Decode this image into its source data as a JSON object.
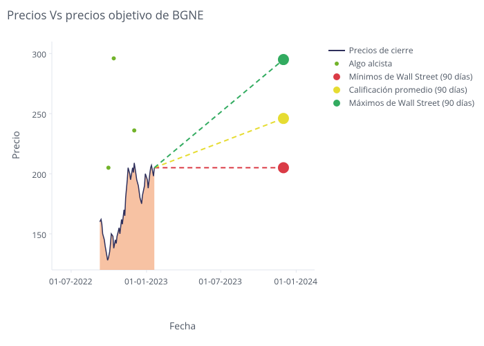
{
  "title": "Precios Vs precios objetivo de BGNE",
  "xlabel": "Fecha",
  "ylabel": "Precio",
  "title_fontsize": 17,
  "label_fontsize": 14,
  "tick_fontsize": 12,
  "background_color": "#ffffff",
  "title_color": "#4d5663",
  "text_color": "#4d5663",
  "axis_line_color": "#e1e5ed",
  "xlim": [
    "2022-05-15",
    "2024-02-15"
  ],
  "ylim": [
    120,
    310
  ],
  "xticks": [
    "01-07-2022",
    "01-01-2023",
    "01-07-2023",
    "01-01-2024"
  ],
  "yticks": [
    150,
    200,
    250,
    300
  ],
  "legend": {
    "position": "right-top",
    "items": [
      {
        "label": "Precios de cierre",
        "type": "line",
        "color": "#2e2f5b"
      },
      {
        "label": "Algo alcista",
        "type": "marker",
        "color": "#72b32a",
        "marker_size": 6
      },
      {
        "label": "Mínimos de Wall Street (90 días)",
        "type": "marker",
        "color": "#da3b46",
        "marker_size": 12
      },
      {
        "label": "Calificación promedio (90 días)",
        "type": "marker",
        "color": "#e6dc32",
        "marker_size": 12
      },
      {
        "label": "Máximos de Wall Street (90 días)",
        "type": "marker",
        "color": "#32ab60",
        "marker_size": 12
      }
    ]
  },
  "series": {
    "close_prices": {
      "type": "line",
      "color": "#2e2f5b",
      "line_width": 1.5,
      "fill": "tozeroy",
      "fill_color": "#f4ae84",
      "fill_opacity": 0.75,
      "x": [
        "2022-09-09",
        "2022-09-12",
        "2022-09-14",
        "2022-09-16",
        "2022-09-20",
        "2022-09-22",
        "2022-09-26",
        "2022-09-28",
        "2022-09-30",
        "2022-10-03",
        "2022-10-05",
        "2022-10-07",
        "2022-10-11",
        "2022-10-13",
        "2022-10-17",
        "2022-10-19",
        "2022-10-21",
        "2022-10-24",
        "2022-10-26",
        "2022-10-28",
        "2022-11-01",
        "2022-11-03",
        "2022-11-07",
        "2022-11-09",
        "2022-11-11",
        "2022-11-15",
        "2022-11-17",
        "2022-11-21",
        "2022-11-23",
        "2022-11-28",
        "2022-11-30",
        "2022-12-02",
        "2022-12-06",
        "2022-12-08",
        "2022-12-12",
        "2022-12-14",
        "2022-12-16",
        "2022-12-20",
        "2022-12-22",
        "2022-12-27",
        "2022-12-29",
        "2023-01-03",
        "2023-01-05",
        "2023-01-09",
        "2023-01-11",
        "2023-01-13",
        "2023-01-18",
        "2023-01-20"
      ],
      "y": [
        160,
        162,
        158,
        150,
        145,
        140,
        132,
        128,
        130,
        135,
        142,
        150,
        148,
        138,
        145,
        142,
        148,
        152,
        155,
        150,
        162,
        158,
        170,
        165,
        180,
        195,
        205,
        200,
        195,
        205,
        201,
        209,
        200,
        195,
        190,
        185,
        180,
        175,
        182,
        190,
        200,
        195,
        188,
        200,
        205,
        207,
        198,
        205
      ]
    },
    "bullish": {
      "type": "scatter",
      "color": "#72b32a",
      "marker_size": 6,
      "x": [
        "2022-09-30",
        "2022-10-13",
        "2022-12-02"
      ],
      "y": [
        205,
        296,
        236
      ]
    },
    "wallst_low": {
      "type": "target_line",
      "color": "#da3b46",
      "dash": "dash",
      "marker_size": 16,
      "start_x": "2023-01-20",
      "start_y": 205,
      "end_x": "2023-12-01",
      "end_y": 205
    },
    "wallst_avg": {
      "type": "target_line",
      "color": "#e6dc32",
      "dash": "dash",
      "marker_size": 16,
      "start_x": "2023-01-20",
      "start_y": 205,
      "end_x": "2023-12-01",
      "end_y": 246
    },
    "wallst_high": {
      "type": "target_line",
      "color": "#32ab60",
      "dash": "dash",
      "marker_size": 16,
      "start_x": "2023-01-20",
      "start_y": 205,
      "end_x": "2023-12-01",
      "end_y": 295
    }
  }
}
